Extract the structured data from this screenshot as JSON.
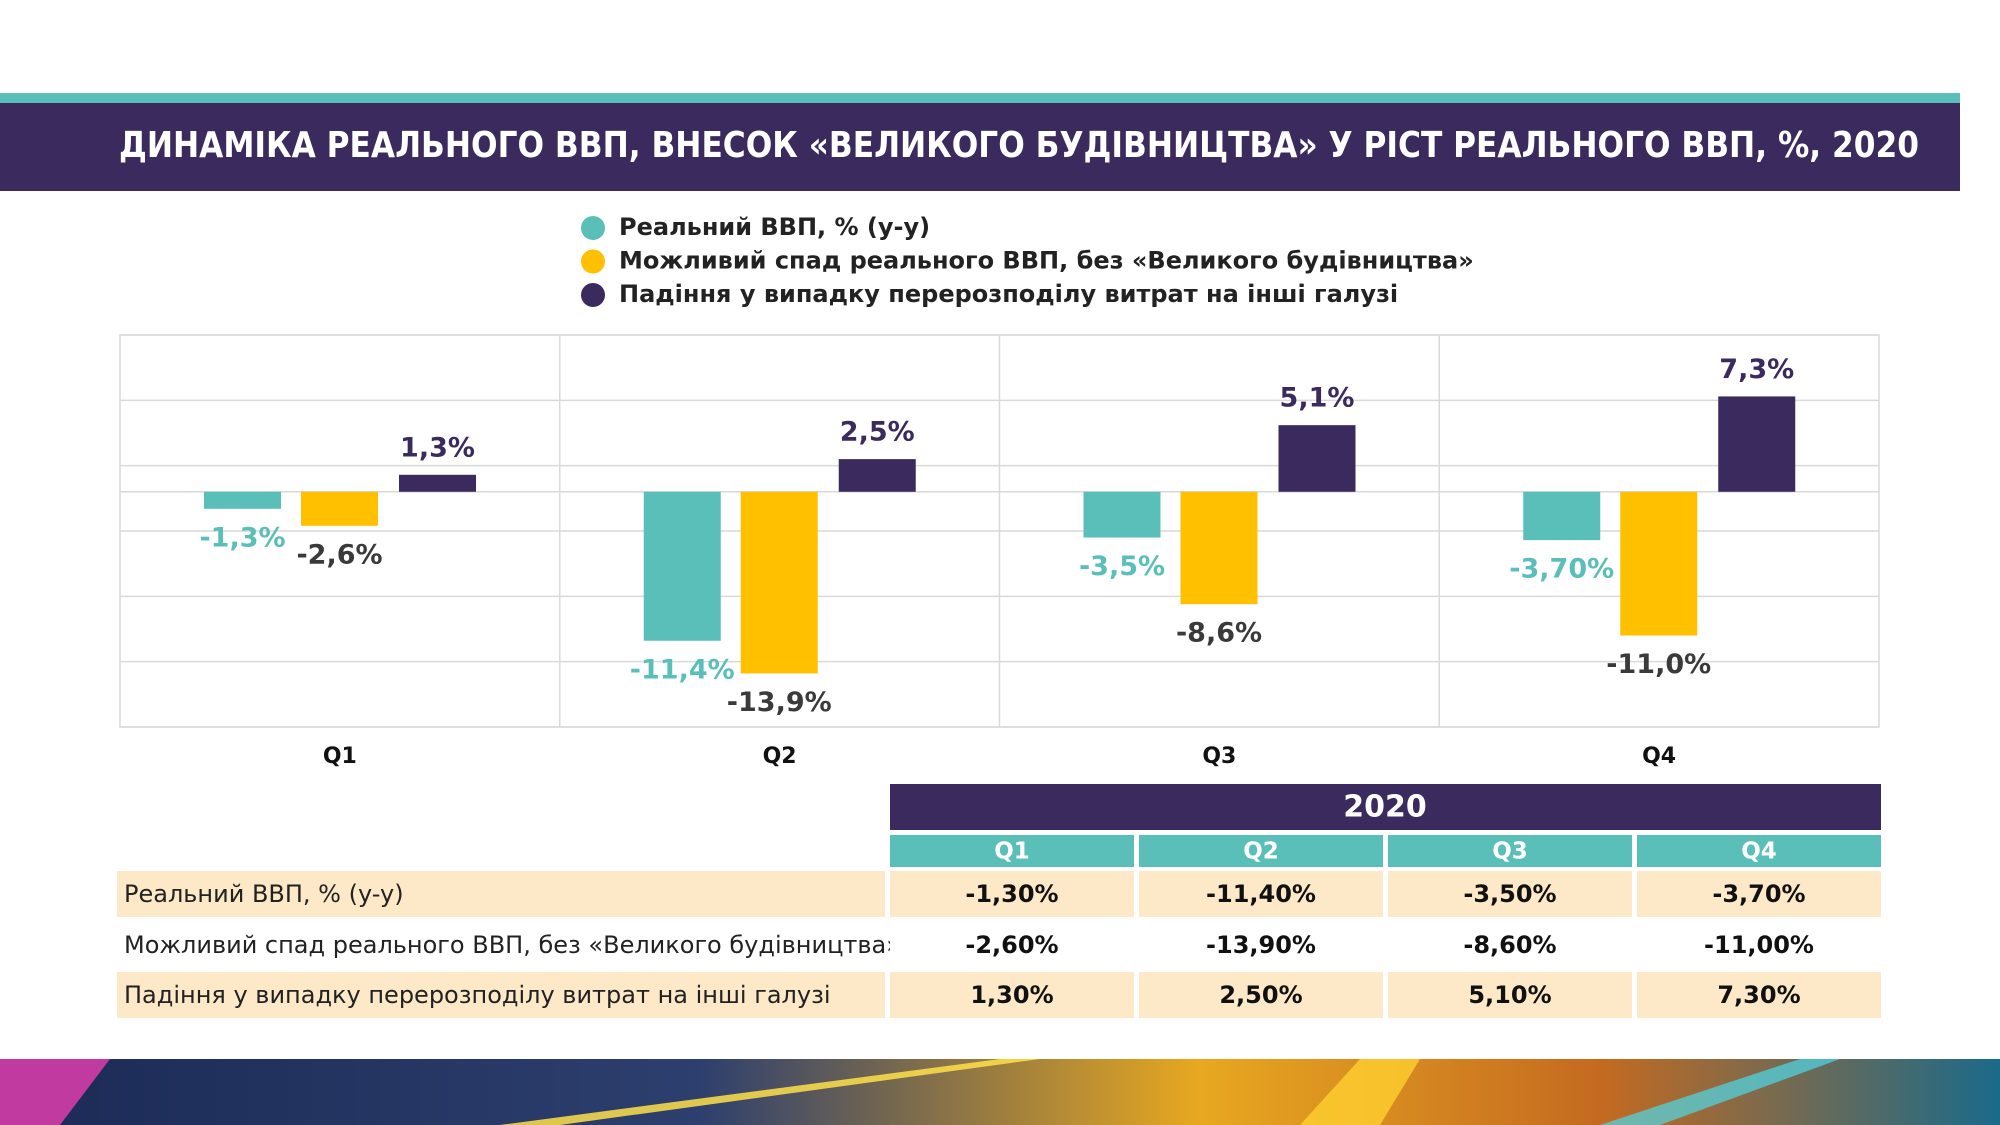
{
  "chart_data": {
    "type": "bar",
    "title": "ДИНАМІКА РЕАЛЬНОГО ВВП, ВНЕСОК «ВЕЛИКОГО БУДІВНИЦТВА» У РІСТ РЕАЛЬНОГО ВВП, %, 2020",
    "categories": [
      "Q1",
      "Q2",
      "Q3",
      "Q4"
    ],
    "series": [
      {
        "name": "Реальний ВВП, % (y-y)",
        "color": "#5bbfb9",
        "values": [
          -1.3,
          -11.4,
          -3.5,
          -3.7
        ],
        "value_labels": [
          "-1,3%",
          "-11,4%",
          "-3,5%",
          "-3,70%"
        ]
      },
      {
        "name": "Можливий спад реального ВВП, без «Великого будівництва»",
        "color": "#ffc000",
        "values": [
          -2.6,
          -13.9,
          -8.6,
          -11.0
        ],
        "value_labels": [
          "-2,6%",
          "-13,9%",
          "-8,6%",
          "-11,0%"
        ]
      },
      {
        "name": "Падіння у випадку перерозподілу витрат на інші галузі",
        "color": "#3b2a5e",
        "values": [
          1.3,
          2.5,
          5.1,
          7.3
        ],
        "value_labels": [
          "1,3%",
          "2,5%",
          "5,1%",
          "7,3%"
        ]
      }
    ],
    "ylim": [
      -18,
      12
    ],
    "yticks": [
      -18,
      -13,
      -8,
      -3,
      0,
      2,
      7,
      12
    ],
    "grid": true,
    "legend": "top"
  },
  "table": {
    "year": "2020",
    "columns": [
      "Q1",
      "Q2",
      "Q3",
      "Q4"
    ],
    "rows": [
      {
        "label": "Реальний ВВП, % (y-y)",
        "cells": [
          "-1,30%",
          "-11,40%",
          "-3,50%",
          "-3,70%"
        ]
      },
      {
        "label": "Можливий спад реального ВВП, без «Великого будівництва»",
        "cells": [
          "-2,60%",
          "-13,90%",
          "-8,60%",
          "-11,00%"
        ]
      },
      {
        "label": "Падіння у випадку перерозподілу витрат на інші галузі",
        "cells": [
          "1,30%",
          "2,50%",
          "5,10%",
          "7,30%"
        ]
      }
    ]
  }
}
